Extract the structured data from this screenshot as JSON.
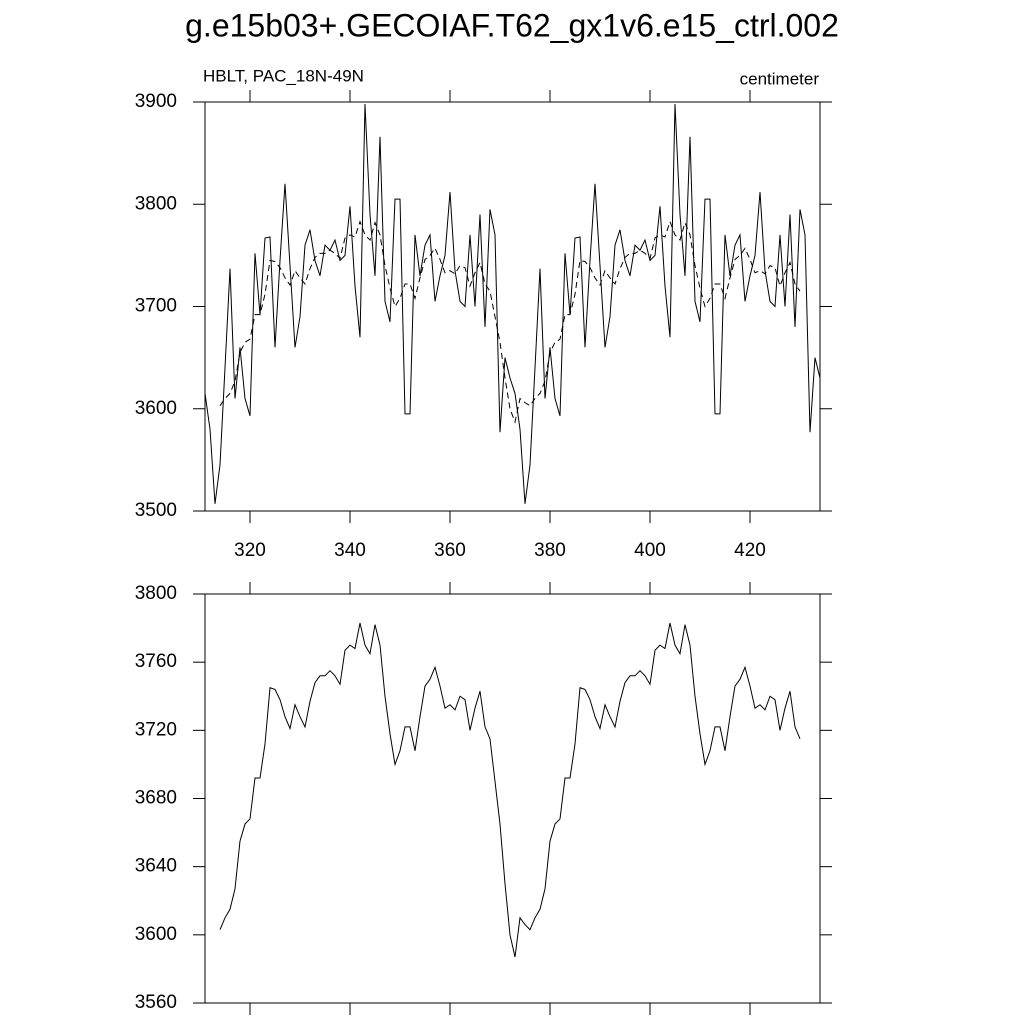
{
  "title": "g.e15b03+.GECOIAF.T62_gx1v6.e15_ctrl.002",
  "chart_data": [
    {
      "type": "line",
      "left_label": "HBLT, PAC_18N-49N",
      "right_label": "centimeter",
      "x": [
        311,
        312,
        313,
        314,
        315,
        316,
        317,
        318,
        319,
        320,
        321,
        322,
        323,
        324,
        325,
        326,
        327,
        328,
        329,
        330,
        331,
        332,
        333,
        334,
        335,
        336,
        337,
        338,
        339,
        340,
        341,
        342,
        343,
        344,
        345,
        346,
        347,
        348,
        349,
        350,
        351,
        352,
        353,
        354,
        355,
        356,
        357,
        358,
        359,
        360,
        361,
        362,
        363,
        364,
        365,
        366,
        367,
        368,
        369,
        370,
        371,
        372,
        373,
        374,
        375,
        376,
        377,
        378,
        379,
        380,
        381,
        382,
        383,
        384,
        385,
        386,
        387,
        388,
        389,
        390,
        391,
        392,
        393,
        394,
        395,
        396,
        397,
        398,
        399,
        400,
        401,
        402,
        403,
        404,
        405,
        406,
        407,
        408,
        409,
        410,
        411,
        412,
        413,
        414,
        415,
        416,
        417,
        418,
        419,
        420,
        421,
        422,
        423,
        424,
        425,
        426,
        427,
        428,
        429,
        430,
        431,
        432,
        433,
        434
      ],
      "series": [
        {
          "color": "#000000",
          "line_style": "solid",
          "values": [
            3615,
            3580,
            3507,
            3545,
            3640,
            3737,
            3610,
            3660,
            3610,
            3593,
            3752,
            3692,
            3767,
            3768,
            3660,
            3745,
            3820,
            3740,
            3660,
            3690,
            3760,
            3775,
            3745,
            3730,
            3760,
            3755,
            3765,
            3745,
            3750,
            3798,
            3720,
            3670,
            3898,
            3790,
            3730,
            3866,
            3705,
            3685,
            3805,
            3805,
            3595,
            3595,
            3770,
            3730,
            3760,
            3770,
            3705,
            3730,
            3750,
            3812,
            3735,
            3705,
            3700,
            3770,
            3700,
            3790,
            3680,
            3795,
            3770,
            3577,
            3650,
            3630,
            3615,
            3580,
            3507,
            3545,
            3640,
            3737,
            3610,
            3660,
            3610,
            3593,
            3752,
            3692,
            3767,
            3768,
            3660,
            3745,
            3820,
            3740,
            3660,
            3690,
            3760,
            3775,
            3745,
            3730,
            3760,
            3755,
            3765,
            3745,
            3750,
            3798,
            3720,
            3670,
            3898,
            3790,
            3730,
            3866,
            3705,
            3685,
            3805,
            3805,
            3595,
            3595,
            3770,
            3730,
            3760,
            3770,
            3705,
            3730,
            3750,
            3812,
            3735,
            3705,
            3700,
            3770,
            3700,
            3790,
            3680,
            3795,
            3770,
            3577,
            3650,
            3630
          ]
        },
        {
          "color": "#000000",
          "line_style": "dashed",
          "values": [
            null,
            null,
            null,
            3603,
            3610,
            3615,
            3627,
            3655,
            3665,
            3668,
            3692,
            3692,
            3712,
            3745,
            3744,
            3738,
            3728,
            3721,
            3735,
            3728,
            3722,
            3737,
            3748,
            3752,
            3752,
            3755,
            3752,
            3747,
            3767,
            3770,
            3768,
            3783,
            3770,
            3765,
            3782,
            3770,
            3740,
            3718,
            3700,
            3708,
            3722,
            3722,
            3708,
            3728,
            3746,
            3750,
            3757,
            3746,
            3733,
            3735,
            3732,
            3740,
            3738,
            3720,
            3733,
            3743,
            3722,
            3715,
            3690,
            3665,
            3630,
            3600,
            3587,
            3610,
            3606,
            3603,
            3610,
            3615,
            3627,
            3655,
            3665,
            3668,
            3692,
            3692,
            3712,
            3745,
            3744,
            3738,
            3728,
            3721,
            3735,
            3728,
            3722,
            3737,
            3748,
            3752,
            3752,
            3755,
            3752,
            3747,
            3767,
            3770,
            3768,
            3783,
            3770,
            3765,
            3782,
            3770,
            3740,
            3718,
            3700,
            3708,
            3722,
            3722,
            3708,
            3728,
            3746,
            3750,
            3757,
            3746,
            3733,
            3735,
            3732,
            3740,
            3738,
            3720,
            3733,
            3743,
            3722,
            3715,
            null,
            null,
            null,
            null
          ]
        }
      ],
      "xlim": [
        311,
        434
      ],
      "xticks": [
        320,
        340,
        360,
        380,
        400,
        420
      ],
      "xtick_labels": true,
      "ylim": [
        3500,
        3900
      ],
      "yticks": [
        3500,
        3600,
        3700,
        3800,
        3900
      ]
    },
    {
      "type": "line",
      "x": [
        311,
        312,
        313,
        314,
        315,
        316,
        317,
        318,
        319,
        320,
        321,
        322,
        323,
        324,
        325,
        326,
        327,
        328,
        329,
        330,
        331,
        332,
        333,
        334,
        335,
        336,
        337,
        338,
        339,
        340,
        341,
        342,
        343,
        344,
        345,
        346,
        347,
        348,
        349,
        350,
        351,
        352,
        353,
        354,
        355,
        356,
        357,
        358,
        359,
        360,
        361,
        362,
        363,
        364,
        365,
        366,
        367,
        368,
        369,
        370,
        371,
        372,
        373,
        374,
        375,
        376,
        377,
        378,
        379,
        380,
        381,
        382,
        383,
        384,
        385,
        386,
        387,
        388,
        389,
        390,
        391,
        392,
        393,
        394,
        395,
        396,
        397,
        398,
        399,
        400,
        401,
        402,
        403,
        404,
        405,
        406,
        407,
        408,
        409,
        410,
        411,
        412,
        413,
        414,
        415,
        416,
        417,
        418,
        419,
        420,
        421,
        422,
        423,
        424,
        425,
        426,
        427,
        428,
        429,
        430,
        431,
        432,
        433,
        434
      ],
      "series": [
        {
          "color": "#000000",
          "line_style": "solid",
          "values": [
            null,
            null,
            null,
            3603,
            3610,
            3615,
            3627,
            3655,
            3665,
            3668,
            3692,
            3692,
            3712,
            3745,
            3744,
            3738,
            3728,
            3721,
            3735,
            3728,
            3722,
            3737,
            3748,
            3752,
            3752,
            3755,
            3752,
            3747,
            3767,
            3770,
            3768,
            3783,
            3770,
            3765,
            3782,
            3770,
            3740,
            3718,
            3700,
            3708,
            3722,
            3722,
            3708,
            3728,
            3746,
            3750,
            3757,
            3746,
            3733,
            3735,
            3732,
            3740,
            3738,
            3720,
            3733,
            3743,
            3722,
            3715,
            3690,
            3665,
            3630,
            3600,
            3587,
            3610,
            3606,
            3603,
            3610,
            3615,
            3627,
            3655,
            3665,
            3668,
            3692,
            3692,
            3712,
            3745,
            3744,
            3738,
            3728,
            3721,
            3735,
            3728,
            3722,
            3737,
            3748,
            3752,
            3752,
            3755,
            3752,
            3747,
            3767,
            3770,
            3768,
            3783,
            3770,
            3765,
            3782,
            3770,
            3740,
            3718,
            3700,
            3708,
            3722,
            3722,
            3708,
            3728,
            3746,
            3750,
            3757,
            3746,
            3733,
            3735,
            3732,
            3740,
            3738,
            3720,
            3733,
            3743,
            3722,
            3715,
            null,
            null,
            null,
            null
          ]
        }
      ],
      "xlim": [
        311,
        434
      ],
      "xticks": [
        320,
        340,
        360,
        380,
        400,
        420
      ],
      "xtick_labels": false,
      "ylim": [
        3560,
        3800
      ],
      "yticks": [
        3560,
        3600,
        3640,
        3680,
        3720,
        3760,
        3800
      ]
    }
  ]
}
